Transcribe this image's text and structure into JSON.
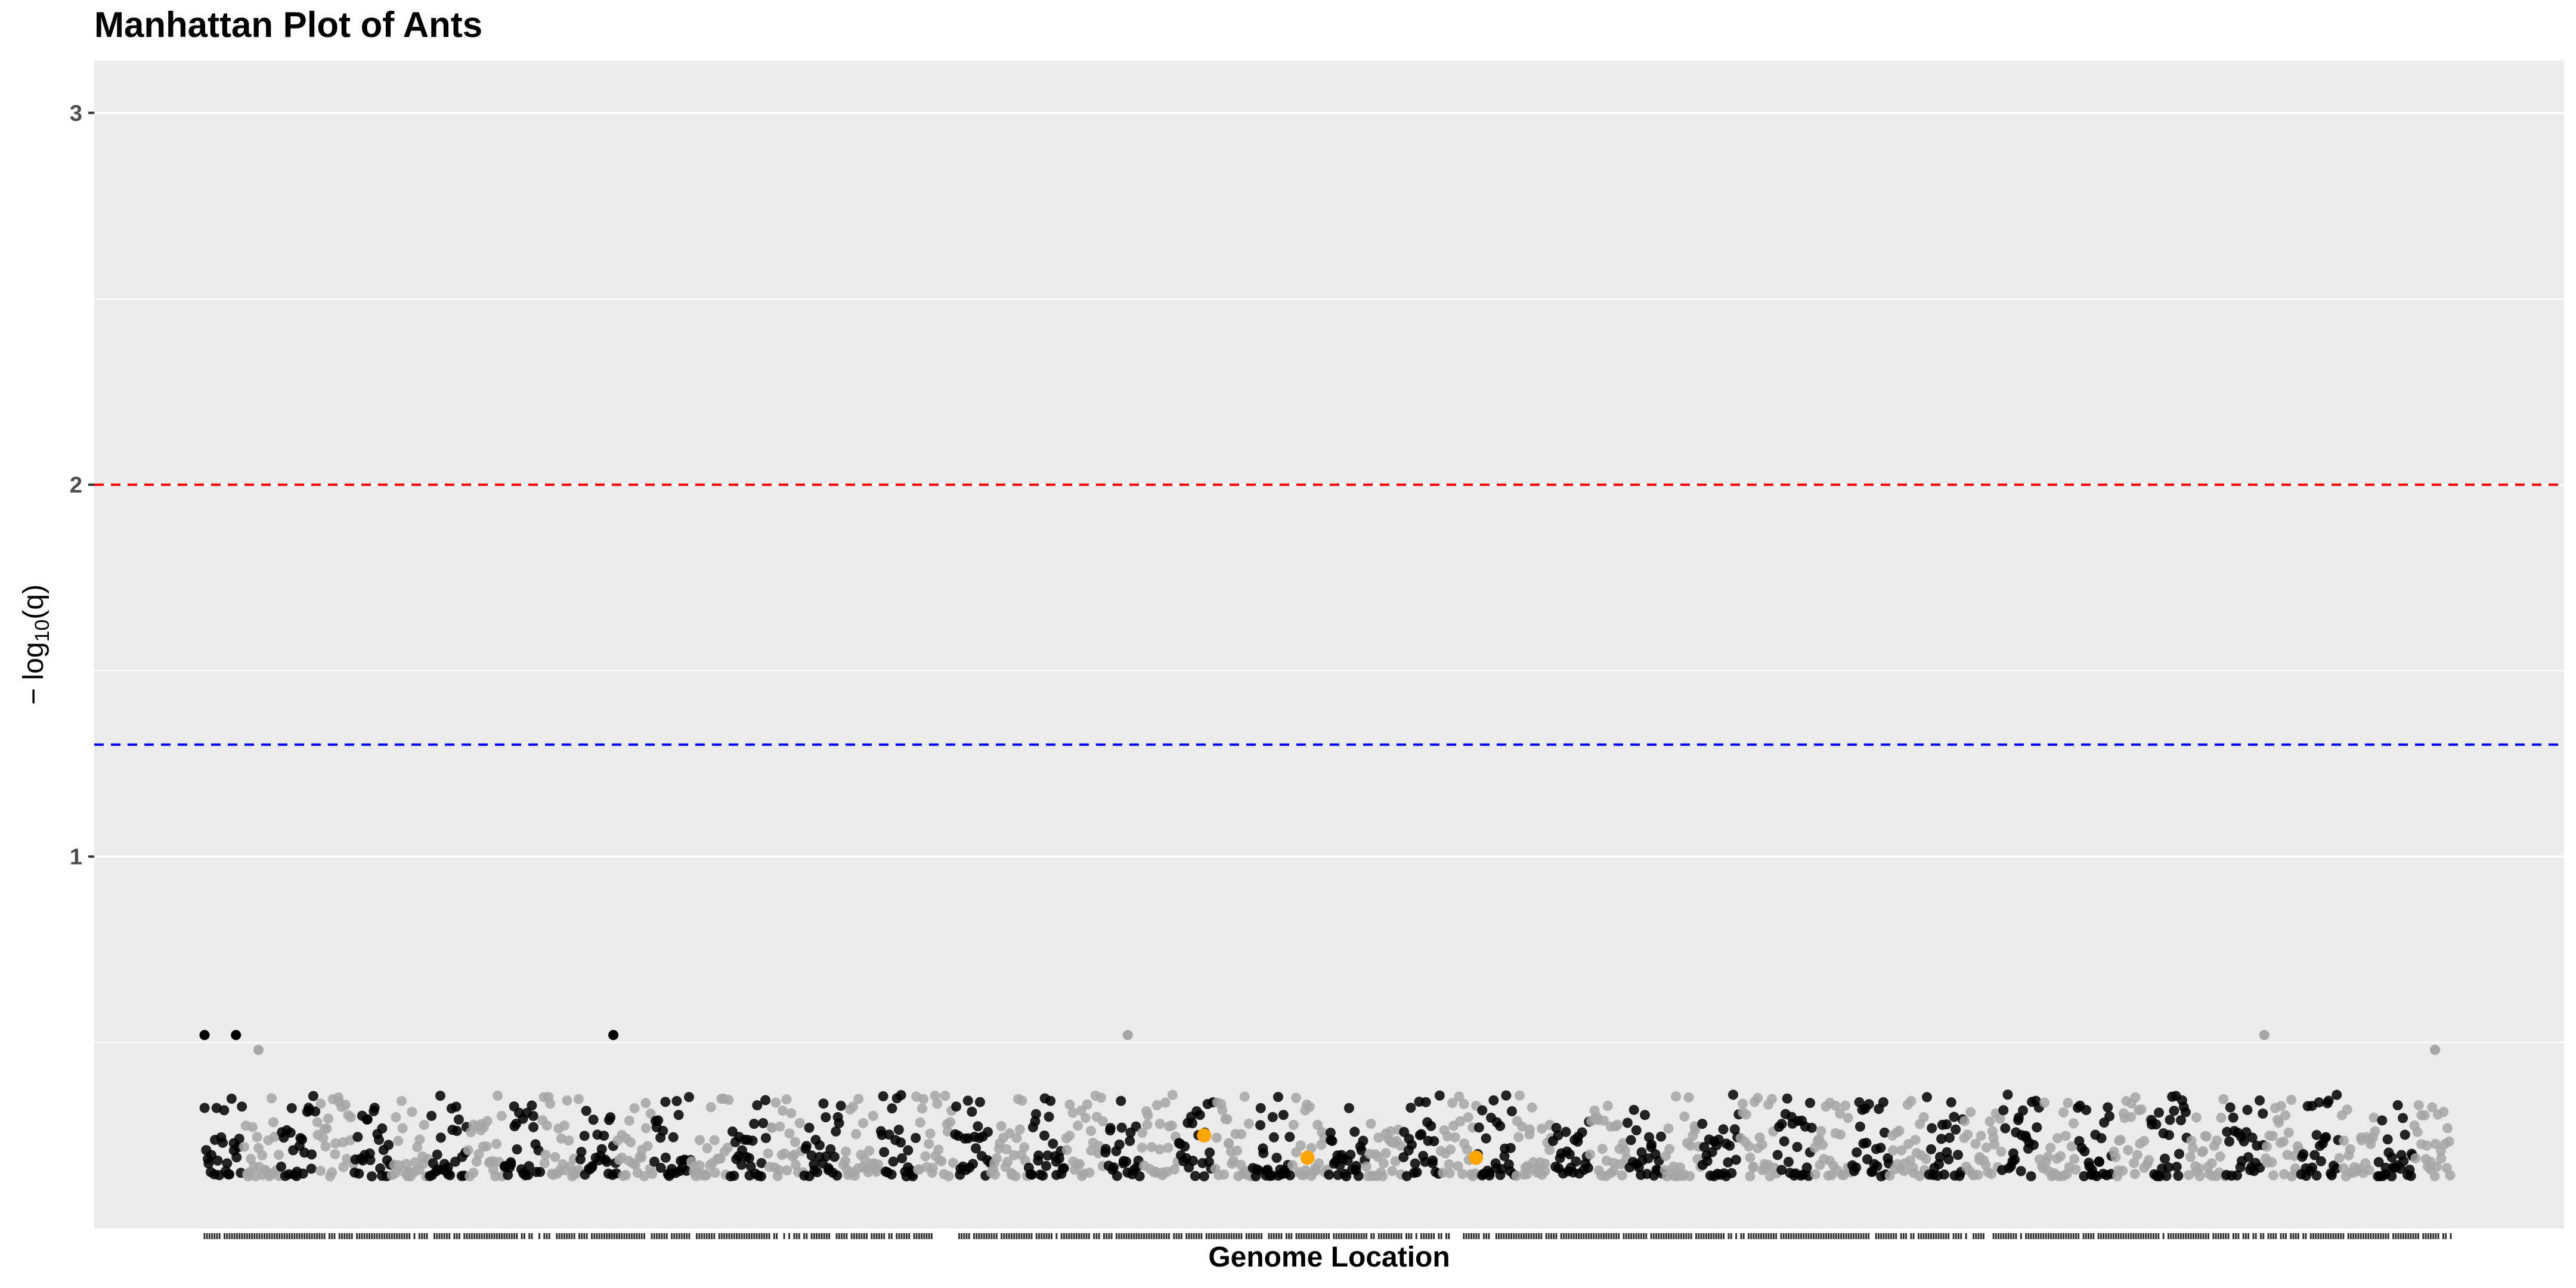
{
  "chart_data": {
    "type": "scatter",
    "title": "Manhattan Plot of Ants",
    "xlabel": "Genome Location",
    "ylabel": "−log10(q)",
    "ylabel_parts": {
      "prefix": "− log",
      "sub": "10",
      "suffix": "(q)"
    },
    "ylim": [
      0,
      3.14
    ],
    "y_ticks": [
      1,
      2,
      3
    ],
    "y_tick_labels": [
      "1",
      "2",
      "3"
    ],
    "grid": true,
    "x_ticks_labeled": false,
    "x_rug": true,
    "thresholds": [
      {
        "value": 2.0,
        "color": "#ff0000",
        "style": "dashed"
      },
      {
        "value": 1.301,
        "color": "#0000ff",
        "style": "dashed"
      }
    ],
    "colors": {
      "panel": "#ebebeb",
      "grid": "#ffffff",
      "chrom_odd": "#000000",
      "chrom_even": "#a6a6a6",
      "highlight": "#ffa500",
      "rug": "#333333"
    },
    "highlighted_points": [
      {
        "x": 0.445,
        "y": 0.25
      },
      {
        "x": 0.491,
        "y": 0.19
      },
      {
        "x": 0.566,
        "y": 0.19
      }
    ],
    "peaks": [
      {
        "x": 0.0,
        "y": 0.52,
        "series": "odd"
      },
      {
        "x": 0.014,
        "y": 0.52,
        "series": "odd"
      },
      {
        "x": 0.024,
        "y": 0.48,
        "series": "even"
      },
      {
        "x": 0.182,
        "y": 0.52,
        "series": "odd"
      },
      {
        "x": 0.411,
        "y": 0.52,
        "series": "even"
      },
      {
        "x": 0.917,
        "y": 0.52,
        "series": "even"
      },
      {
        "x": 0.993,
        "y": 0.48,
        "series": "even"
      }
    ],
    "x_range": [
      0,
      1
    ],
    "n_background_points": 1500,
    "background_y_range": [
      0.14,
      0.36
    ]
  }
}
